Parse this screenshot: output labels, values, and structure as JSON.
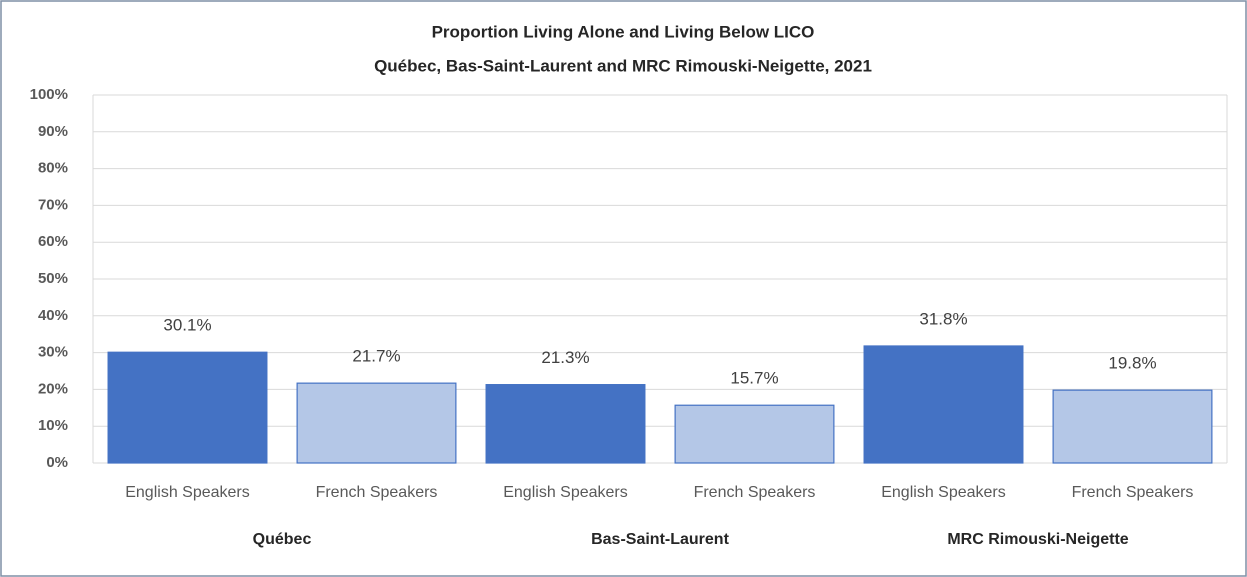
{
  "chart_data": {
    "type": "bar",
    "title": "Proportion Living Alone and Living Below LICO",
    "subtitle": "Québec, Bas-Saint-Laurent and MRC Rimouski-Neigette, 2021",
    "categories": [
      "English Speakers",
      "French Speakers",
      "English Speakers",
      "French Speakers",
      "English Speakers",
      "French Speakers"
    ],
    "groups": [
      "Québec",
      "Bas-Saint-Laurent",
      "MRC Rimouski-Neigette"
    ],
    "values": [
      30.1,
      21.7,
      21.3,
      15.7,
      31.8,
      19.8
    ],
    "value_labels": [
      "30.1%",
      "21.7%",
      "21.3%",
      "15.7%",
      "31.8%",
      "19.8%"
    ],
    "colors": [
      "#4472c4",
      "#b4c7e7",
      "#4472c4",
      "#b4c7e7",
      "#4472c4",
      "#b4c7e7"
    ],
    "ylim": [
      0,
      100
    ],
    "yticks": [
      {
        "value": 0,
        "label": "0%"
      },
      {
        "value": 10,
        "label": "10%"
      },
      {
        "value": 20,
        "label": "20%"
      },
      {
        "value": 30,
        "label": "30%"
      },
      {
        "value": 40,
        "label": "40%"
      },
      {
        "value": 50,
        "label": "50%"
      },
      {
        "value": 60,
        "label": "60%"
      },
      {
        "value": 70,
        "label": "70%"
      },
      {
        "value": 80,
        "label": "80%"
      },
      {
        "value": 90,
        "label": "90%"
      },
      {
        "value": 100,
        "label": "100%"
      }
    ],
    "grid": true
  }
}
